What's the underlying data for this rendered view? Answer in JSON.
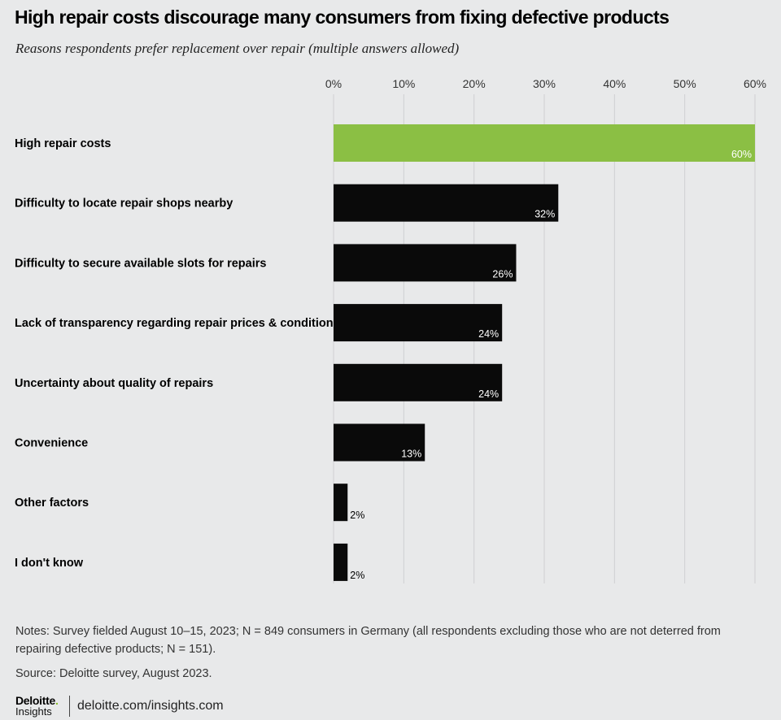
{
  "title": "High repair costs discourage many consumers from fixing defective products",
  "subtitle": "Reasons respondents prefer replacement over repair (multiple answers allowed)",
  "notes": "Notes: Survey fielded August 10–15, 2023; N = 849 consumers in Germany (all respondents excluding those who are not deterred from repairing defective products; N = 151).",
  "source": "Source: Deloitte survey, August 2023.",
  "logo": {
    "brand": "Deloitte",
    "dot": ".",
    "sub": "Insights"
  },
  "url": "deloitte.com/insights.com",
  "colors": {
    "highlight": "#8bbf44",
    "bar": "#0a0a0a",
    "grid": "#cfd0d2",
    "background": "#e8e9ea"
  },
  "chart_data": {
    "type": "bar",
    "orientation": "horizontal",
    "categories": [
      "High repair costs",
      "Difficulty to locate repair shops nearby",
      "Difficulty to secure available slots for repairs",
      "Lack of transparency regarding repair prices & conditions",
      "Uncertainty about quality of repairs",
      "Convenience",
      "Other factors",
      "I don't know"
    ],
    "values": [
      60,
      32,
      26,
      24,
      24,
      13,
      2,
      2
    ],
    "value_labels": [
      "60%",
      "32%",
      "26%",
      "24%",
      "24%",
      "13%",
      "2%",
      "2%"
    ],
    "highlight_index": 0,
    "xlim": [
      0,
      60
    ],
    "xticks": [
      0,
      10,
      20,
      30,
      40,
      50,
      60
    ],
    "xtick_labels": [
      "0%",
      "10%",
      "20%",
      "30%",
      "40%",
      "50%",
      "60%"
    ],
    "axis_position": "top",
    "grid": true
  }
}
